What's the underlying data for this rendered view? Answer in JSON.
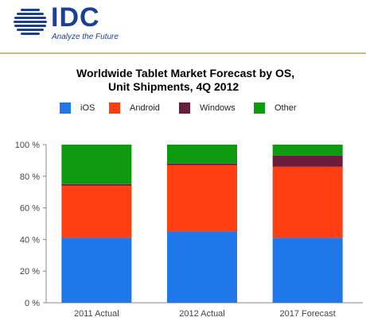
{
  "brand": {
    "name": "IDC",
    "tagline": "Analyze the Future"
  },
  "chart_data": {
    "type": "bar",
    "stacked": true,
    "title": "Worldwide Tablet Market Forecast by OS,",
    "subtitle": "Unit Shipments, 4Q 2012",
    "categories": [
      "2011 Actual",
      "2012 Actual",
      "2017 Forecast"
    ],
    "series": [
      {
        "name": "iOS",
        "color": "#1f77ea",
        "values": [
          41,
          45,
          41
        ]
      },
      {
        "name": "Android",
        "color": "#ff3f11",
        "values": [
          33,
          42,
          45
        ]
      },
      {
        "name": "Windows",
        "color": "#6b1b3d",
        "values": [
          1,
          1,
          7
        ]
      },
      {
        "name": "Other",
        "color": "#0e9a0e",
        "values": [
          25,
          12,
          7
        ]
      }
    ],
    "ylim": [
      0,
      100
    ],
    "yticks": [
      "0 %",
      "20 %",
      "40 %",
      "60 %",
      "80 %",
      "100 %"
    ],
    "legend_position": "top",
    "grid": false
  }
}
